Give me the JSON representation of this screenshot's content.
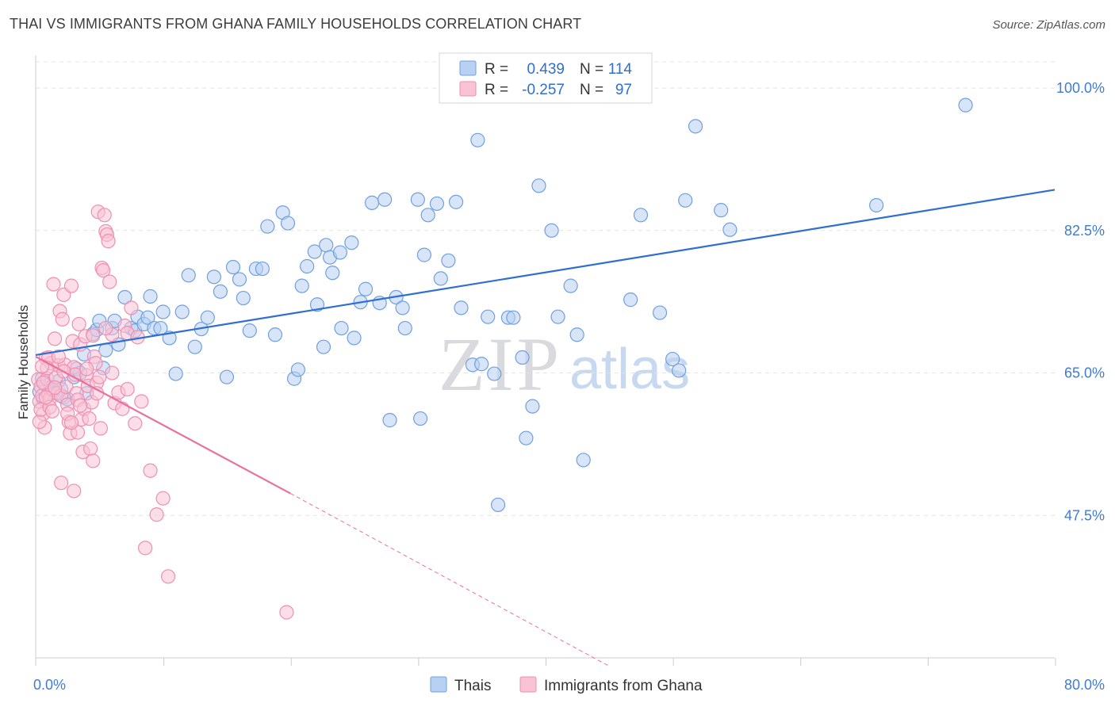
{
  "title": "THAI VS IMMIGRANTS FROM GHANA FAMILY HOUSEHOLDS CORRELATION CHART",
  "source": "Source: ZipAtlas.com",
  "watermark": {
    "zip": "ZIP",
    "atlas": "atlas"
  },
  "legend_top": [
    {
      "r_label": "R =",
      "r_value": "0.439",
      "n_label": "N =",
      "n_value": "114",
      "color": "#6fa0df",
      "fill": "#b8d0f2"
    },
    {
      "r_label": "R =",
      "r_value": "-0.257",
      "n_label": "N =",
      "n_value": "97",
      "color": "#ee8fb0",
      "fill": "#f9c3d5"
    }
  ],
  "legend_bottom": [
    {
      "label": "Thais",
      "color": "#6fa0df",
      "fill": "#b8d0f2"
    },
    {
      "label": "Immigrants from Ghana",
      "color": "#ee8fb0",
      "fill": "#f9c3d5"
    }
  ],
  "chart_data": {
    "type": "scatter",
    "title": "THAI VS IMMIGRANTS FROM GHANA FAMILY HOUSEHOLDS CORRELATION CHART",
    "xlabel": "",
    "ylabel": "Family Households",
    "xlim": [
      0,
      80
    ],
    "ylim": [
      30,
      104
    ],
    "x_tick_labels": [
      "0.0%",
      "80.0%"
    ],
    "y_ticks": [
      47.5,
      65.0,
      82.5,
      100.0
    ],
    "y_tick_labels": [
      "47.5%",
      "65.0%",
      "82.5%",
      "100.0%"
    ],
    "grid": true,
    "series": [
      {
        "name": "Thais",
        "color": "#2f6fd0",
        "fill": "#b8d0f2",
        "stroke": "#6fa0df",
        "trend": {
          "x": [
            0,
            80
          ],
          "y": [
            67.2,
            87.5
          ]
        },
        "points": [
          [
            0.3,
            62.7
          ],
          [
            0.5,
            64.3
          ],
          [
            0.6,
            61.8
          ],
          [
            0.8,
            63.5
          ],
          [
            1.0,
            62.5
          ],
          [
            1.2,
            63.2
          ],
          [
            1.5,
            62.5
          ],
          [
            1.8,
            64.0
          ],
          [
            2.0,
            63.0
          ],
          [
            2.2,
            62.0
          ],
          [
            2.5,
            61.8
          ],
          [
            3.0,
            64.5
          ],
          [
            3.2,
            65.5
          ],
          [
            3.5,
            65.0
          ],
          [
            3.8,
            67.3
          ],
          [
            4.0,
            62.5
          ],
          [
            4.5,
            69.8
          ],
          [
            4.8,
            70.3
          ],
          [
            5.0,
            71.4
          ],
          [
            5.3,
            65.6
          ],
          [
            5.5,
            67.8
          ],
          [
            6.0,
            70.5
          ],
          [
            6.2,
            71.4
          ],
          [
            6.5,
            68.5
          ],
          [
            7.0,
            74.3
          ],
          [
            7.5,
            70.5
          ],
          [
            7.8,
            70.2
          ],
          [
            8.0,
            71.9
          ],
          [
            8.5,
            71.0
          ],
          [
            8.8,
            71.8
          ],
          [
            9.0,
            74.4
          ],
          [
            9.3,
            70.5
          ],
          [
            9.8,
            70.5
          ],
          [
            10.0,
            72.5
          ],
          [
            10.5,
            69.3
          ],
          [
            11.0,
            64.9
          ],
          [
            11.5,
            72.5
          ],
          [
            12.0,
            77.0
          ],
          [
            12.5,
            68.2
          ],
          [
            13.0,
            70.4
          ],
          [
            13.5,
            71.8
          ],
          [
            14.0,
            76.8
          ],
          [
            14.5,
            75.0
          ],
          [
            15.0,
            64.5
          ],
          [
            15.5,
            78.0
          ],
          [
            16.0,
            76.5
          ],
          [
            16.3,
            74.2
          ],
          [
            16.8,
            70.2
          ],
          [
            17.3,
            77.8
          ],
          [
            17.8,
            77.8
          ],
          [
            18.2,
            83.0
          ],
          [
            18.8,
            69.7
          ],
          [
            19.4,
            84.7
          ],
          [
            19.8,
            83.4
          ],
          [
            20.3,
            64.3
          ],
          [
            20.6,
            65.4
          ],
          [
            20.9,
            75.7
          ],
          [
            21.3,
            78.1
          ],
          [
            21.9,
            79.9
          ],
          [
            22.1,
            73.4
          ],
          [
            22.6,
            68.2
          ],
          [
            22.8,
            80.7
          ],
          [
            23.1,
            79.2
          ],
          [
            23.3,
            77.3
          ],
          [
            23.9,
            79.8
          ],
          [
            24.0,
            70.5
          ],
          [
            24.8,
            81.0
          ],
          [
            25.0,
            69.3
          ],
          [
            25.5,
            73.7
          ],
          [
            25.9,
            75.3
          ],
          [
            26.4,
            85.9
          ],
          [
            27.0,
            73.6
          ],
          [
            27.4,
            86.3
          ],
          [
            27.8,
            59.2
          ],
          [
            28.3,
            74.3
          ],
          [
            28.8,
            73.0
          ],
          [
            29.0,
            70.5
          ],
          [
            30.0,
            86.3
          ],
          [
            30.2,
            59.4
          ],
          [
            30.5,
            79.5
          ],
          [
            30.8,
            84.4
          ],
          [
            31.5,
            85.8
          ],
          [
            31.8,
            76.6
          ],
          [
            32.4,
            78.8
          ],
          [
            33.0,
            86.0
          ],
          [
            33.4,
            73.0
          ],
          [
            34.3,
            66.0
          ],
          [
            34.7,
            93.6
          ],
          [
            35.0,
            66.1
          ],
          [
            35.5,
            71.9
          ],
          [
            36.0,
            64.9
          ],
          [
            36.3,
            48.8
          ],
          [
            37.1,
            71.8
          ],
          [
            37.5,
            71.8
          ],
          [
            38.2,
            66.9
          ],
          [
            38.5,
            57.0
          ],
          [
            39.0,
            60.9
          ],
          [
            39.5,
            88.0
          ],
          [
            40.5,
            82.5
          ],
          [
            41.0,
            71.9
          ],
          [
            42.0,
            75.7
          ],
          [
            42.5,
            69.7
          ],
          [
            43.0,
            54.3
          ],
          [
            46.7,
            74.0
          ],
          [
            47.5,
            84.4
          ],
          [
            49.0,
            72.4
          ],
          [
            50.0,
            66.7
          ],
          [
            50.5,
            65.3
          ],
          [
            51.0,
            86.2
          ],
          [
            51.8,
            95.3
          ],
          [
            53.8,
            85.0
          ],
          [
            54.5,
            82.6
          ],
          [
            66.0,
            85.6
          ],
          [
            73.0,
            97.9
          ]
        ]
      },
      {
        "name": "Immigrants from Ghana",
        "color": "#e9719d",
        "fill": "#f9c3d5",
        "stroke": "#ee8fb0",
        "trend": {
          "x": [
            0,
            20
          ],
          "y": [
            67.0,
            50.2
          ]
        },
        "trend_dashed": {
          "x": [
            20,
            45
          ],
          "y": [
            50.2,
            29.0
          ]
        },
        "points": [
          [
            0.2,
            64.2
          ],
          [
            0.3,
            61.5
          ],
          [
            0.4,
            63.3
          ],
          [
            0.5,
            62.2
          ],
          [
            0.6,
            60.0
          ],
          [
            0.7,
            58.3
          ],
          [
            0.8,
            66.8
          ],
          [
            0.9,
            64.3
          ],
          [
            1.0,
            62.4
          ],
          [
            1.1,
            61.8
          ],
          [
            1.2,
            66.2
          ],
          [
            1.3,
            63.0
          ],
          [
            1.4,
            75.9
          ],
          [
            1.5,
            69.2
          ],
          [
            1.6,
            64.5
          ],
          [
            1.7,
            62.5
          ],
          [
            1.8,
            65.9
          ],
          [
            1.9,
            72.6
          ],
          [
            2.0,
            62.2
          ],
          [
            2.1,
            71.6
          ],
          [
            2.2,
            74.6
          ],
          [
            2.3,
            66.0
          ],
          [
            2.4,
            63.3
          ],
          [
            2.5,
            61.1
          ],
          [
            2.6,
            59.0
          ],
          [
            2.7,
            57.6
          ],
          [
            2.8,
            75.7
          ],
          [
            2.9,
            68.9
          ],
          [
            3.0,
            65.7
          ],
          [
            3.1,
            64.8
          ],
          [
            3.2,
            62.5
          ],
          [
            3.3,
            61.7
          ],
          [
            3.4,
            71.0
          ],
          [
            3.5,
            68.5
          ],
          [
            3.6,
            59.3
          ],
          [
            3.7,
            55.3
          ],
          [
            3.8,
            60.6
          ],
          [
            3.9,
            69.5
          ],
          [
            4.0,
            64.7
          ],
          [
            4.1,
            63.4
          ],
          [
            4.2,
            59.4
          ],
          [
            4.3,
            55.7
          ],
          [
            4.4,
            61.4
          ],
          [
            4.5,
            69.6
          ],
          [
            4.6,
            67.0
          ],
          [
            4.7,
            66.2
          ],
          [
            4.8,
            63.8
          ],
          [
            4.9,
            84.8
          ],
          [
            5.0,
            64.5
          ],
          [
            5.1,
            58.2
          ],
          [
            5.2,
            77.9
          ],
          [
            5.3,
            77.6
          ],
          [
            5.4,
            84.4
          ],
          [
            5.5,
            82.4
          ],
          [
            5.6,
            82.0
          ],
          [
            5.7,
            81.2
          ],
          [
            5.8,
            76.2
          ],
          [
            6.0,
            69.7
          ],
          [
            6.2,
            61.3
          ],
          [
            6.5,
            62.6
          ],
          [
            6.8,
            60.6
          ],
          [
            7.0,
            70.8
          ],
          [
            7.2,
            69.9
          ],
          [
            7.5,
            73.0
          ],
          [
            7.8,
            58.8
          ],
          [
            8.0,
            69.4
          ],
          [
            8.3,
            61.5
          ],
          [
            8.6,
            43.5
          ],
          [
            9.0,
            53.0
          ],
          [
            9.5,
            47.6
          ],
          [
            10.0,
            49.6
          ],
          [
            10.4,
            40.0
          ],
          [
            2.0,
            51.5
          ],
          [
            3.0,
            50.5
          ],
          [
            4.5,
            54.2
          ],
          [
            2.5,
            60.0
          ],
          [
            1.0,
            66.9
          ],
          [
            0.3,
            59.0
          ],
          [
            0.4,
            60.5
          ],
          [
            0.6,
            63.8
          ],
          [
            1.8,
            67.0
          ],
          [
            3.3,
            57.7
          ],
          [
            4.0,
            65.5
          ],
          [
            5.5,
            70.5
          ],
          [
            1.1,
            60.8
          ],
          [
            1.5,
            63.2
          ],
          [
            2.2,
            65.2
          ],
          [
            0.9,
            65.6
          ],
          [
            1.3,
            60.3
          ],
          [
            2.8,
            58.9
          ],
          [
            3.5,
            61.0
          ],
          [
            4.8,
            62.5
          ],
          [
            6.0,
            65.0
          ],
          [
            7.2,
            63.0
          ],
          [
            19.7,
            35.6
          ],
          [
            0.5,
            65.8
          ],
          [
            0.8,
            62.0
          ]
        ]
      }
    ]
  }
}
